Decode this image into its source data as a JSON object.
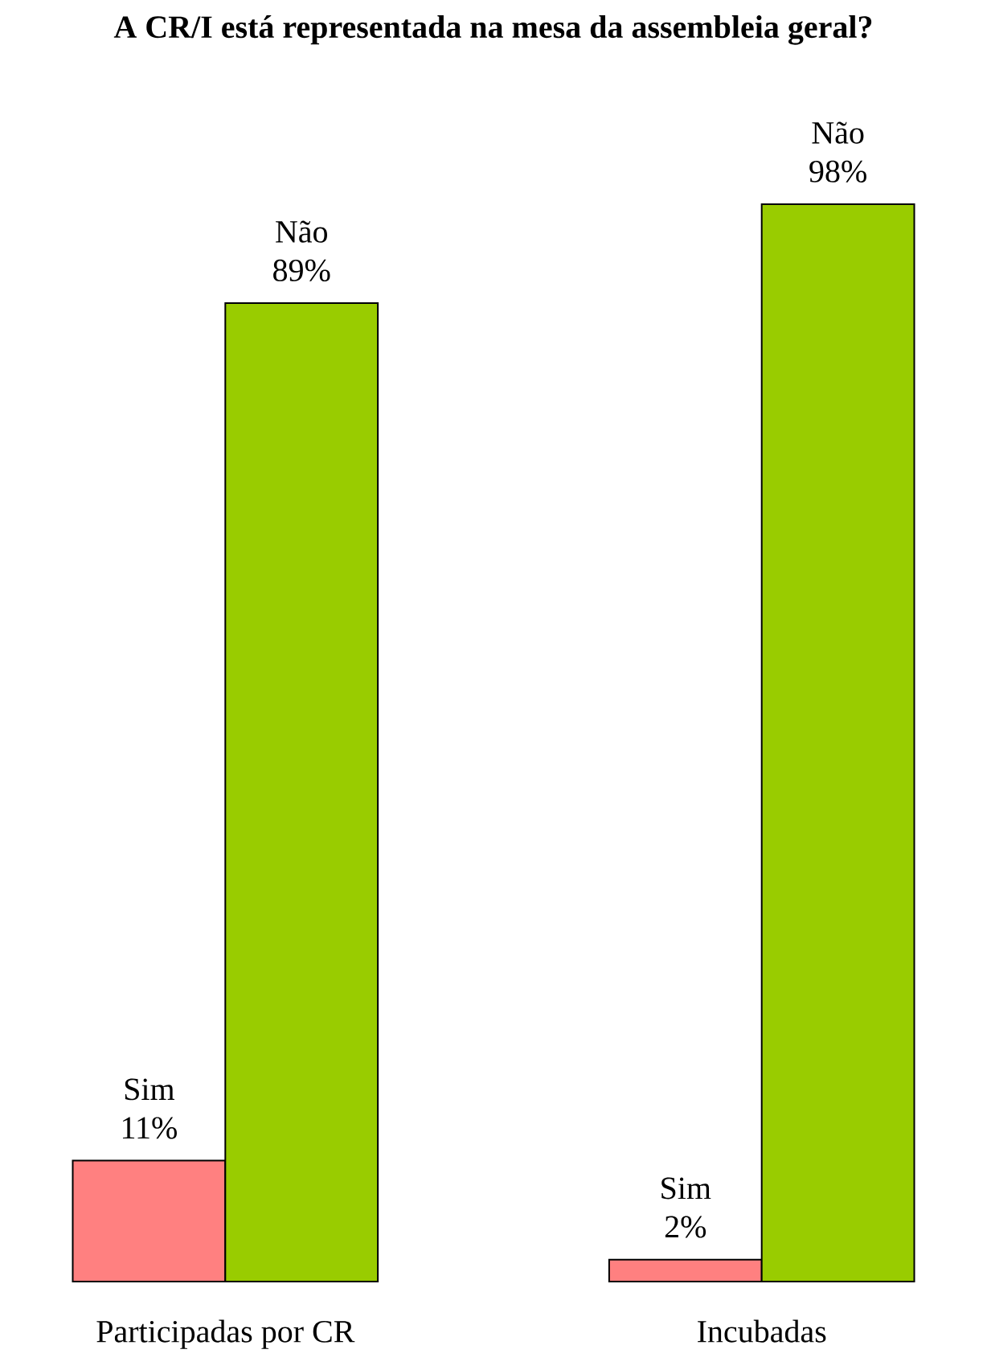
{
  "chart_data": {
    "type": "bar",
    "title": "A CR/I está representada na mesa da assembleia geral?",
    "categories": [
      "Participadas por CR",
      "Incubadas"
    ],
    "series": [
      {
        "name": "Sim",
        "color": "#ff8080",
        "values": [
          11,
          2
        ],
        "value_labels": [
          "11%",
          "2%"
        ]
      },
      {
        "name": "Não",
        "color": "#99cc00",
        "values": [
          89,
          98
        ],
        "value_labels": [
          "89%",
          "98%"
        ]
      }
    ],
    "ylim": [
      0,
      98
    ],
    "legend": false
  }
}
